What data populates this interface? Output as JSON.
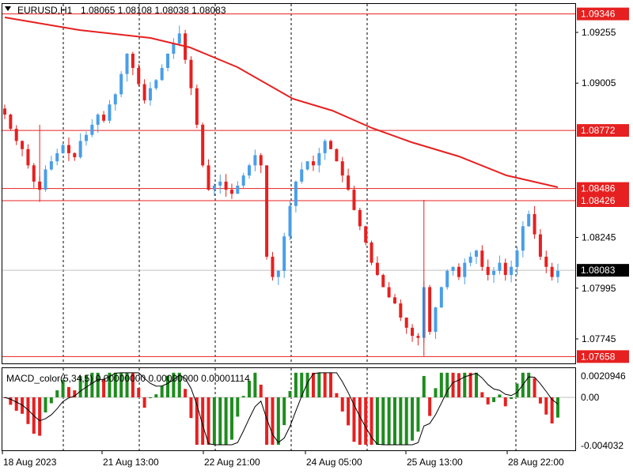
{
  "header": {
    "symbol_timeframe": "EURUSD,H1",
    "ohlc": "1.08065 1.08108 1.08038 1.08083"
  },
  "indicator": {
    "label": "MACD_color(5,34,5) 0.00000000 0.00000000 0.00001114",
    "ticks": [
      "0.0020946",
      "0.00",
      "-0.004032"
    ]
  },
  "price_axis": {
    "ticks": [
      "1.09255",
      "1.09005",
      "1.08245",
      "1.07995",
      "1.07745"
    ],
    "labels": [
      {
        "value": "1.09346",
        "style": "red"
      },
      {
        "value": "1.08772",
        "style": "red"
      },
      {
        "value": "1.08486",
        "style": "red"
      },
      {
        "value": "1.08426",
        "style": "red"
      },
      {
        "value": "1.08083",
        "style": "current"
      },
      {
        "value": "1.07658",
        "style": "red"
      }
    ]
  },
  "time_axis": [
    "18 Aug 2023",
    "21 Aug 13:00",
    "22 Aug 21:00",
    "24 Aug 05:00",
    "25 Aug 13:00",
    "28 Aug 22:00"
  ],
  "colors": {
    "bull": "#4a9ee8",
    "bear": "#e62020",
    "level_line": "#e62020",
    "ma": "#e62020",
    "macd_pos": "#1e8c1e",
    "macd_neg": "#e62020",
    "grid": "#000000"
  },
  "chart_data": {
    "type": "candlestick",
    "horizontal_levels": [
      1.09346,
      1.08772,
      1.08486,
      1.08426,
      1.07658
    ],
    "current_price": 1.08083,
    "close_path": [
      1.0885,
      1.0878,
      1.0872,
      1.0868,
      1.086,
      1.0852,
      1.0848,
      1.0858,
      1.0862,
      1.0866,
      1.087,
      1.0866,
      1.0864,
      1.0872,
      1.0875,
      1.088,
      1.0885,
      1.0882,
      1.089,
      1.0895,
      1.0905,
      1.0915,
      1.0908,
      1.09,
      1.0892,
      1.0898,
      1.0902,
      1.0908,
      1.0915,
      1.092,
      1.0925,
      1.0912,
      1.0898,
      1.088,
      1.086,
      1.0848,
      1.085,
      1.0852,
      1.0848,
      1.0846,
      1.085,
      1.0855,
      1.086,
      1.0865,
      1.086,
      1.0815,
      1.0805,
      1.0808,
      1.0825,
      1.084,
      1.0852,
      1.0858,
      1.0862,
      1.086,
      1.0866,
      1.0872,
      1.0868,
      1.0862,
      1.0855,
      1.0848,
      1.0838,
      1.083,
      1.0822,
      1.0812,
      1.0806,
      1.08,
      1.0795,
      1.0792,
      1.0785,
      1.078,
      1.0776,
      1.0775,
      1.08,
      1.0778,
      1.079,
      1.08,
      1.0808,
      1.081,
      1.0805,
      1.0812,
      1.0815,
      1.0818,
      1.081,
      1.0806,
      1.0808,
      1.0812,
      1.0806,
      1.081,
      1.0818,
      1.083,
      1.0836,
      1.0826,
      1.0815,
      1.081,
      1.0805,
      1.0808
    ]
  }
}
